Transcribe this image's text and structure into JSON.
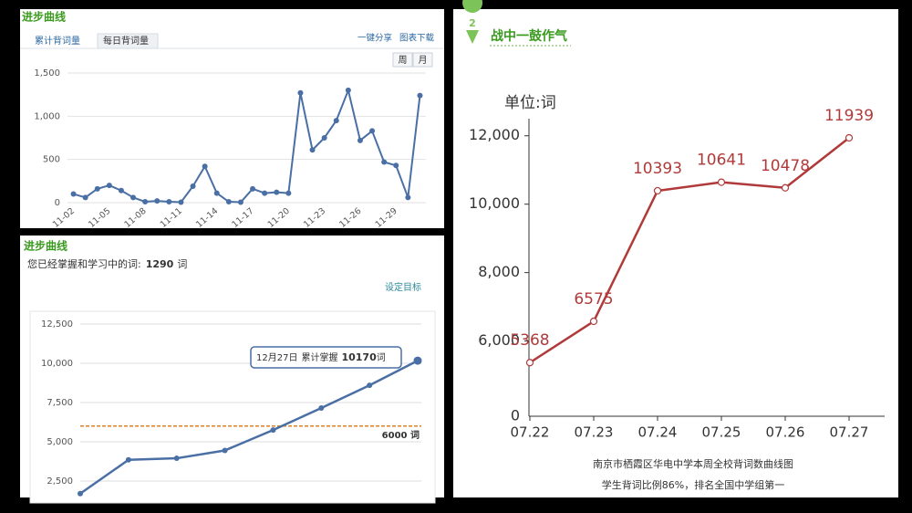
{
  "chart_data": [
    {
      "type": "line",
      "title": "进步曲线",
      "tabs": [
        "累计背词量",
        "每日背词量"
      ],
      "links": [
        "一键分享",
        "图表下载"
      ],
      "period_buttons": [
        "周",
        "月"
      ],
      "categories": [
        "11-02",
        null,
        null,
        "11-05",
        null,
        null,
        "11-08",
        null,
        null,
        "11-11",
        null,
        null,
        "11-14",
        null,
        null,
        "11-17",
        null,
        null,
        "11-20",
        null,
        null,
        "11-23",
        null,
        null,
        "11-26",
        null,
        null,
        "11-29",
        null,
        null
      ],
      "values": [
        100,
        60,
        160,
        200,
        140,
        60,
        10,
        20,
        10,
        5,
        190,
        420,
        110,
        10,
        5,
        160,
        110,
        120,
        110,
        1270,
        610,
        750,
        950,
        1300,
        720,
        830,
        470,
        430,
        60,
        1240
      ],
      "color": "#4a6fa5",
      "ylim": [
        0,
        1500
      ],
      "yticks": [
        0,
        500,
        {
          "value": 1000,
          "label": "1,000"
        },
        {
          "value": 1500,
          "label": "1,500"
        }
      ],
      "grid": true
    },
    {
      "type": "line",
      "title": "进步曲线",
      "summary": {
        "text": "您已经掌握和学习中的词:",
        "count": 1290,
        "unit": "词"
      },
      "link": "设定目标",
      "values": [
        1700,
        3850,
        3950,
        4450,
        5750,
        7150,
        8600,
        10170
      ],
      "color": "#4a6fa5",
      "ylim": [
        0,
        12500
      ],
      "yticks": [
        {
          "value": 2500,
          "label": "2,500"
        },
        {
          "value": 5000,
          "label": "5,000"
        },
        {
          "value": 7500,
          "label": "7,500"
        },
        {
          "value": 10000,
          "label": "10,000"
        },
        {
          "value": 12500,
          "label": "12,500"
        }
      ],
      "grid": true,
      "reference_line": {
        "value": 6000,
        "label": "6000 词",
        "color": "#d9822b"
      },
      "tooltip": {
        "date": "12月27日",
        "label": "累计掌握",
        "value": 10170,
        "unit": "词"
      }
    },
    {
      "type": "line",
      "badge": "2",
      "title": "战中一鼓作气",
      "y_axis_label": "单位:词",
      "baseline_label": "0",
      "categories": [
        "07.22",
        "07.23",
        "07.24",
        "07.25",
        "07.26",
        "07.27"
      ],
      "values": [
        5368,
        6575,
        10393,
        10641,
        10478,
        11939
      ],
      "color": "#b03a3a",
      "ylim": [
        3800,
        12500
      ],
      "yticks": [
        {
          "value": 6000,
          "label": "6,000"
        },
        {
          "value": 8000,
          "label": "8,000"
        },
        {
          "value": 10000,
          "label": "10,000"
        },
        {
          "value": 12000,
          "label": "12,000"
        }
      ],
      "captions": [
        "南京市栖霞区华电中学本周全校背词数曲线图",
        "学生背词比例86%，排名全国中学组第一"
      ]
    }
  ]
}
